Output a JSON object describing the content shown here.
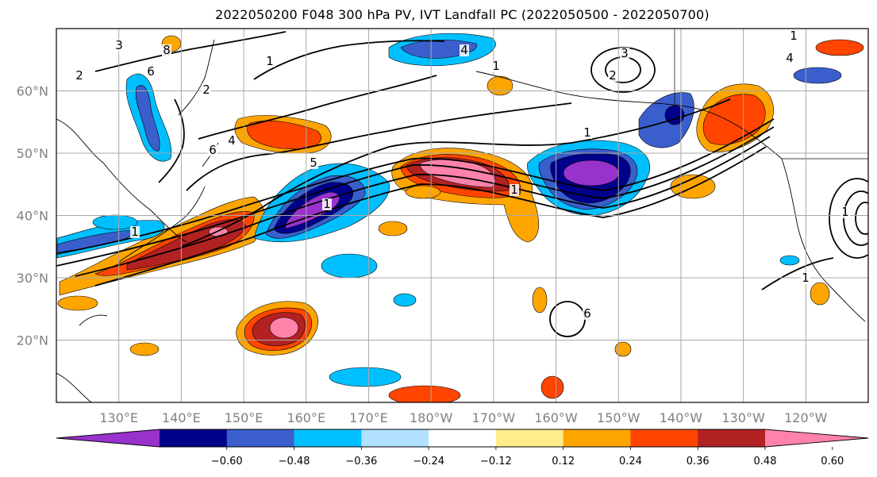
{
  "title": "2022050200 F048 300 hPa PV, IVT Landfall PC (2022050500 - 2022050700)",
  "latitude_labels": [
    "60°N",
    "50°N",
    "40°N",
    "30°N",
    "20°N"
  ],
  "longitude_labels": [
    "130°E",
    "140°E",
    "150°E",
    "160°E",
    "170°E",
    "180°W",
    "170°W",
    "160°W",
    "150°W",
    "140°W",
    "130°W",
    "120°W"
  ],
  "map": {
    "lat_range": [
      10,
      70
    ],
    "lon_range": [
      120,
      250
    ],
    "gridlines": true
  },
  "colorbar": {
    "tick_labels": [
      "−0.60",
      "−0.48",
      "−0.36",
      "−0.24",
      "−0.12",
      "0.12",
      "0.24",
      "0.36",
      "0.48",
      "0.60"
    ],
    "colors": [
      "#9932cc",
      "#00008b",
      "#3a5fcd",
      "#00bfff",
      "#b0e2ff",
      "#ffffff",
      "#ffec8b",
      "#ffa500",
      "#ff4500",
      "#b22222",
      "#ff82ab"
    ],
    "extend": "both"
  },
  "contour_labels": [
    "3",
    "8",
    "2",
    "6",
    "4",
    "1",
    "2",
    "1",
    "4",
    "3",
    "2",
    "1",
    "1",
    "4",
    "6",
    "5",
    "1",
    "1",
    "1",
    "1",
    "6",
    "1"
  ]
}
